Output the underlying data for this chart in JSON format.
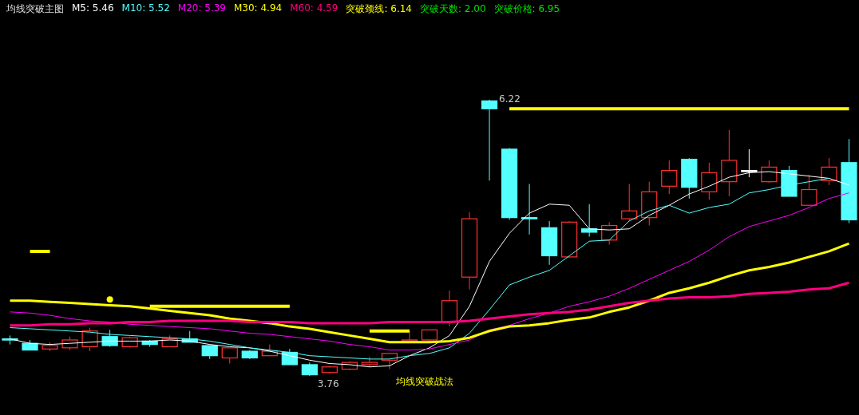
{
  "chart_data": {
    "type": "candlestick",
    "title": "均线突破主图",
    "categories": [
      null,
      null,
      null,
      null,
      null,
      null,
      null,
      null,
      null,
      null,
      null,
      null,
      null,
      null,
      null,
      null,
      null,
      null,
      null,
      null,
      null,
      null,
      null,
      null,
      null,
      null,
      null,
      null,
      null,
      null,
      null,
      null,
      null,
      null,
      null,
      null,
      null,
      null,
      null,
      null,
      null,
      null,
      null
    ],
    "ohlc": [
      [
        4.09,
        4.12,
        4.04,
        4.08
      ],
      [
        4.05,
        4.08,
        3.99,
        3.99
      ],
      [
        4.0,
        4.06,
        3.98,
        4.03
      ],
      [
        4.01,
        4.11,
        3.99,
        4.08
      ],
      [
        4.02,
        4.19,
        3.98,
        4.16
      ],
      [
        4.11,
        4.17,
        4.02,
        4.03
      ],
      [
        4.02,
        4.11,
        4.01,
        4.1
      ],
      [
        4.07,
        4.08,
        4.02,
        4.04
      ],
      [
        4.02,
        4.12,
        4.02,
        4.09
      ],
      [
        4.09,
        4.16,
        4.06,
        4.06
      ],
      [
        4.03,
        4.03,
        3.91,
        3.94
      ],
      [
        3.92,
        4.01,
        3.87,
        4.01
      ],
      [
        3.98,
        3.99,
        3.91,
        3.92
      ],
      [
        3.94,
        4.04,
        3.94,
        3.98
      ],
      [
        3.97,
        4.0,
        3.86,
        3.86
      ],
      [
        3.86,
        3.88,
        3.76,
        3.77
      ],
      [
        3.79,
        3.85,
        3.78,
        3.84
      ],
      [
        3.82,
        3.89,
        3.81,
        3.88
      ],
      [
        3.86,
        3.93,
        3.84,
        3.88
      ],
      [
        3.9,
        3.96,
        3.82,
        3.96
      ],
      [
        4.07,
        4.16,
        4.07,
        4.08
      ],
      [
        4.08,
        4.17,
        4.06,
        4.17
      ],
      [
        4.24,
        4.52,
        4.2,
        4.43
      ],
      [
        4.64,
        5.22,
        4.53,
        5.16
      ],
      [
        6.21,
        6.22,
        5.5,
        6.14
      ],
      [
        5.78,
        5.79,
        5.15,
        5.17
      ],
      [
        5.17,
        5.47,
        5.02,
        5.16
      ],
      [
        5.08,
        5.14,
        4.75,
        4.83
      ],
      [
        4.82,
        5.14,
        4.81,
        5.13
      ],
      [
        5.07,
        5.29,
        5.0,
        5.04
      ],
      [
        4.97,
        5.13,
        4.93,
        5.1
      ],
      [
        5.16,
        5.47,
        5.14,
        5.23
      ],
      [
        5.17,
        5.49,
        5.1,
        5.4
      ],
      [
        5.45,
        5.68,
        5.38,
        5.59
      ],
      [
        5.69,
        5.7,
        5.34,
        5.44
      ],
      [
        5.4,
        5.66,
        5.33,
        5.57
      ],
      [
        5.49,
        5.95,
        5.36,
        5.68
      ],
      [
        5.59,
        5.78,
        5.53,
        5.58
      ],
      [
        5.49,
        5.68,
        5.48,
        5.62
      ],
      [
        5.59,
        5.63,
        5.36,
        5.36
      ],
      [
        5.28,
        5.55,
        5.28,
        5.42
      ],
      [
        5.5,
        5.7,
        5.46,
        5.62
      ],
      [
        5.66,
        5.87,
        5.12,
        5.15
      ]
    ],
    "colors": [
      "#54ffff",
      "#54ffff",
      "#ff3232",
      "#ff3232",
      "#ff3232",
      "#54ffff",
      "#ff3232",
      "#54ffff",
      "#ff3232",
      "#54ffff",
      "#54ffff",
      "#ff3232",
      "#54ffff",
      "#ff3232",
      "#54ffff",
      "#54ffff",
      "#ff3232",
      "#ff3232",
      "#ff3232",
      "#ff3232",
      "#ff3232",
      "#ff3232",
      "#ff3232",
      "#ff3232",
      "#54ffff",
      "#54ffff",
      "#54ffff",
      "#54ffff",
      "#ff3232",
      "#54ffff",
      "#ff3232",
      "#ff3232",
      "#ff3232",
      "#ff3232",
      "#54ffff",
      "#ff3232",
      "#ff3232",
      "#ffffff",
      "#ff3232",
      "#54ffff",
      "#ff3232",
      "#ff3232",
      "#54ffff"
    ],
    "series": [
      {
        "type": "line",
        "color": "#ffffff",
        "values": [
          4.09,
          4.05,
          4.04,
          4.05,
          4.06,
          4.07,
          4.07,
          4.07,
          4.08,
          4.07,
          4.04,
          4.02,
          4.01,
          3.98,
          3.94,
          3.9,
          3.87,
          3.86,
          3.84,
          3.85,
          3.94,
          4.01,
          4.12,
          4.38,
          4.78,
          5.03,
          5.21,
          5.29,
          5.28,
          5.07,
          5.06,
          5.07,
          5.19,
          5.28,
          5.38,
          5.45,
          5.53,
          5.57,
          5.58,
          5.56,
          5.54,
          5.52,
          5.46
        ]
      },
      {
        "type": "line",
        "color": "#54ffff",
        "values": [
          4.19,
          4.18,
          4.17,
          4.16,
          4.15,
          4.13,
          4.12,
          4.11,
          4.1,
          4.09,
          4.07,
          4.04,
          4.01,
          3.99,
          3.97,
          3.94,
          3.93,
          3.92,
          3.91,
          3.91,
          3.94,
          3.96,
          4.01,
          4.14,
          4.35,
          4.57,
          4.64,
          4.7,
          4.83,
          4.96,
          4.97,
          5.14,
          5.23,
          5.28,
          5.21,
          5.26,
          5.29,
          5.39,
          5.42,
          5.46,
          5.49,
          5.52,
          null
        ]
      },
      {
        "type": "line",
        "color": "#ff00ff",
        "values": [
          4.33,
          4.32,
          4.3,
          4.27,
          4.25,
          4.24,
          4.22,
          4.21,
          4.2,
          4.19,
          4.18,
          4.16,
          4.14,
          4.13,
          4.11,
          4.09,
          4.07,
          4.04,
          4.02,
          3.99,
          3.99,
          4.0,
          4.04,
          4.08,
          4.17,
          4.21,
          4.27,
          4.32,
          4.38,
          4.42,
          4.47,
          4.54,
          4.62,
          4.7,
          4.78,
          4.88,
          5.0,
          5.09,
          5.14,
          5.19,
          5.26,
          5.34,
          5.39
        ]
      },
      {
        "type": "line",
        "color": "#ffff00",
        "values": [
          4.43,
          4.43,
          4.42,
          4.41,
          4.4,
          4.39,
          4.38,
          4.36,
          4.34,
          4.32,
          4.3,
          4.27,
          4.25,
          4.23,
          4.2,
          4.18,
          4.15,
          4.12,
          4.09,
          4.06,
          4.06,
          4.06,
          4.07,
          4.1,
          4.16,
          4.2,
          4.21,
          4.23,
          4.26,
          4.28,
          4.33,
          4.37,
          4.43,
          4.5,
          4.54,
          4.59,
          4.65,
          4.7,
          4.73,
          4.77,
          4.82,
          4.87,
          4.94
        ]
      },
      {
        "type": "line",
        "color": "#ff0080",
        "values": [
          4.21,
          4.21,
          4.22,
          4.22,
          4.23,
          4.23,
          4.24,
          4.24,
          4.25,
          4.25,
          4.25,
          4.25,
          4.24,
          4.24,
          4.24,
          4.23,
          4.23,
          4.23,
          4.23,
          4.24,
          4.24,
          4.24,
          4.24,
          4.25,
          4.27,
          4.29,
          4.31,
          4.32,
          4.33,
          4.35,
          4.38,
          4.41,
          4.43,
          4.45,
          4.46,
          4.46,
          4.47,
          4.49,
          4.5,
          4.51,
          4.53,
          4.54,
          4.59
        ]
      },
      {
        "type": "line",
        "color": "#ffff00",
        "values": [
          null,
          4.87,
          4.87,
          null,
          null,
          4.44,
          null,
          4.38,
          4.38,
          4.38,
          4.38,
          4.38,
          4.38,
          4.38,
          4.38,
          null,
          null,
          null,
          4.16,
          4.16,
          4.16,
          null,
          null,
          null,
          null,
          6.14,
          6.14,
          6.14,
          6.14,
          6.14,
          6.14,
          6.14,
          6.14,
          6.14,
          6.14,
          6.14,
          6.14,
          6.14,
          6.14,
          6.14,
          6.14,
          6.14,
          6.14
        ]
      }
    ],
    "annotations": [
      "M5: 5.46",
      "M10: 5.52",
      "M20: 5.39",
      "M30: 4.94",
      "M60: 4.59",
      "突破颈线: 6.14",
      "突破天数: 2.00",
      "突破价格: 6.95",
      "6.22",
      "均线突破战法",
      {
        "text": "3.76",
        "y": 3.76
      }
    ]
  }
}
